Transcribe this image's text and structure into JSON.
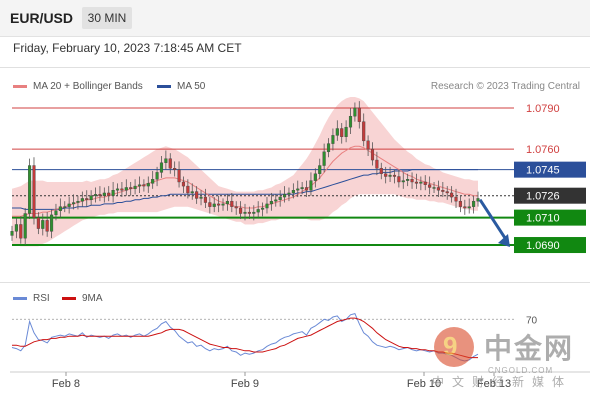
{
  "header": {
    "symbol": "EUR/USD",
    "timeframe": "30 MIN",
    "timestamp": "Friday, February 10, 2023 7:18:45 AM CET"
  },
  "legend": {
    "ma20_label": "MA 20 + Bollinger Bands",
    "ma50_label": "MA 50",
    "credit": "Research © 2023 Trading Central",
    "rsi_label": "RSI",
    "rsi_ma_label": "9MA"
  },
  "colors": {
    "ma20": "#e88080",
    "ma50": "#2b4f9a",
    "bollinger_fill": "#f6c6c6",
    "resistance": "#d04040",
    "support": "#118811",
    "current_price": "#333333",
    "candle_up": "#2f8f2f",
    "candle_down": "#c23b3b",
    "arrow": "#2a5aa0",
    "rsi": "#6a8ad6",
    "rsi_ma": "#cc1111"
  },
  "chart_data": [
    {
      "type": "candlestick",
      "x_axis": {
        "ticks": [
          "Feb 8",
          "Feb 9",
          "Feb 10",
          "Feb 13"
        ]
      },
      "y_axis": {
        "ylim": [
          1.0682,
          1.0798
        ]
      },
      "levels": [
        {
          "label": "1.0790",
          "value": 1.079,
          "kind": "resistance"
        },
        {
          "label": "1.0760",
          "value": 1.076,
          "kind": "resistance"
        },
        {
          "label": "1.0745",
          "value": 1.0745,
          "kind": "ma50"
        },
        {
          "label": "1.0726",
          "value": 1.0726,
          "kind": "current"
        },
        {
          "label": "1.0710",
          "value": 1.071,
          "kind": "support"
        },
        {
          "label": "1.0690",
          "value": 1.069,
          "kind": "support"
        }
      ],
      "forecast_arrow": {
        "from": 1.0726,
        "to": 1.069
      },
      "close": [
        1.07,
        1.0705,
        1.0695,
        1.0713,
        1.0748,
        1.071,
        1.0702,
        1.0708,
        1.07,
        1.0712,
        1.0715,
        1.0718,
        1.0718,
        1.072,
        1.0721,
        1.0722,
        1.0724,
        1.0723,
        1.0726,
        1.0727,
        1.0726,
        1.0728,
        1.0726,
        1.073,
        1.0731,
        1.073,
        1.0732,
        1.0731,
        1.0733,
        1.0734,
        1.0733,
        1.0735,
        1.0738,
        1.0743,
        1.075,
        1.0753,
        1.0746,
        1.0745,
        1.0736,
        1.0733,
        1.0728,
        1.0729,
        1.0724,
        1.0725,
        1.0721,
        1.0718,
        1.072,
        1.0719,
        1.072,
        1.0722,
        1.0718,
        1.0717,
        1.0713,
        1.0714,
        1.0713,
        1.0714,
        1.0716,
        1.0717,
        1.072,
        1.0722,
        1.0723,
        1.0725,
        1.0727,
        1.0728,
        1.073,
        1.0731,
        1.0732,
        1.073,
        1.0737,
        1.0742,
        1.0748,
        1.0758,
        1.0764,
        1.077,
        1.0775,
        1.0769,
        1.0776,
        1.0784,
        1.079,
        1.078,
        1.0766,
        1.076,
        1.0752,
        1.0746,
        1.0742,
        1.074,
        1.0741,
        1.074,
        1.0736,
        1.0737,
        1.0738,
        1.0736,
        1.0735,
        1.0736,
        1.0734,
        1.0732,
        1.0732,
        1.073,
        1.0729,
        1.0728,
        1.0725,
        1.0722,
        1.0718,
        1.0717,
        1.0718,
        1.0722,
        1.0724
      ],
      "ma20": [
        1.0711,
        1.0711,
        1.0711,
        1.0712,
        1.0713,
        1.0713,
        1.0713,
        1.0714,
        1.0714,
        1.0715,
        1.0716,
        1.0717,
        1.0718,
        1.0719,
        1.072,
        1.0721,
        1.0722,
        1.0723,
        1.0723,
        1.0724,
        1.0725,
        1.0725,
        1.0726,
        1.0727,
        1.0728,
        1.0729,
        1.073,
        1.0731,
        1.0732,
        1.0733,
        1.0734,
        1.0735,
        1.0736,
        1.0737,
        1.0738,
        1.0739,
        1.0739,
        1.0739,
        1.0738,
        1.0737,
        1.0736,
        1.0734,
        1.0732,
        1.073,
        1.0728,
        1.0726,
        1.0724,
        1.0722,
        1.0721,
        1.072,
        1.0719,
        1.0718,
        1.0718,
        1.0717,
        1.0717,
        1.0717,
        1.0718,
        1.0718,
        1.0719,
        1.072,
        1.0721,
        1.0722,
        1.0723,
        1.0724,
        1.0725,
        1.0727,
        1.0729,
        1.0731,
        1.0733,
        1.0736,
        1.0739,
        1.0743,
        1.0747,
        1.0751,
        1.0754,
        1.0757,
        1.0759,
        1.0761,
        1.0762,
        1.0762,
        1.0761,
        1.0759,
        1.0757,
        1.0755,
        1.0753,
        1.0751,
        1.0749,
        1.0747,
        1.0745,
        1.0743,
        1.0741,
        1.074,
        1.0738,
        1.0737,
        1.0736,
        1.0735,
        1.0734,
        1.0733,
        1.0732,
        1.0731,
        1.073,
        1.0729,
        1.0728,
        1.0727,
        1.0727,
        1.0726,
        1.0726
      ],
      "ma50": [
        1.0717,
        1.0717,
        1.0717,
        1.0716,
        1.0716,
        1.0716,
        1.0716,
        1.0716,
        1.0716,
        1.0716,
        1.0716,
        1.0716,
        1.0717,
        1.0717,
        1.0717,
        1.0718,
        1.0718,
        1.0718,
        1.0719,
        1.0719,
        1.0719,
        1.072,
        1.072,
        1.072,
        1.0721,
        1.0721,
        1.0722,
        1.0722,
        1.0723,
        1.0723,
        1.0724,
        1.0724,
        1.0725,
        1.0725,
        1.0726,
        1.0726,
        1.0727,
        1.0727,
        1.0727,
        1.0727,
        1.0727,
        1.0727,
        1.0727,
        1.0727,
        1.0727,
        1.0727,
        1.0727,
        1.0727,
        1.0727,
        1.0727,
        1.0727,
        1.0727,
        1.0727,
        1.0727,
        1.0727,
        1.0727,
        1.0727,
        1.0727,
        1.0727,
        1.0727,
        1.0727,
        1.0727,
        1.0727,
        1.0727,
        1.0727,
        1.0728,
        1.0728,
        1.0729,
        1.0729,
        1.073,
        1.0731,
        1.0732,
        1.0733,
        1.0734,
        1.0735,
        1.0736,
        1.0737,
        1.0738,
        1.0739,
        1.074,
        1.0741,
        1.0741,
        1.0742,
        1.0742,
        1.0743,
        1.0743,
        1.0743,
        1.0744,
        1.0744,
        1.0744,
        1.0744,
        1.0745,
        1.0745,
        1.0745,
        1.0745,
        1.0745,
        1.0745,
        1.0745,
        1.0745,
        1.0745,
        1.0745,
        1.0745,
        1.0745,
        1.0745,
        1.0745,
        1.0745,
        1.0745
      ],
      "bb_width": [
        0.002,
        0.0021,
        0.0022,
        0.0023,
        0.0024,
        0.0024,
        0.0024,
        0.0023,
        0.0022,
        0.0021,
        0.002,
        0.0019,
        0.0018,
        0.0017,
        0.0016,
        0.0015,
        0.0014,
        0.0014,
        0.0013,
        0.0013,
        0.0013,
        0.0013,
        0.0013,
        0.0014,
        0.0014,
        0.0015,
        0.0016,
        0.0017,
        0.0018,
        0.0019,
        0.002,
        0.0021,
        0.0022,
        0.0023,
        0.0023,
        0.0023,
        0.0022,
        0.0021,
        0.002,
        0.0019,
        0.0018,
        0.0017,
        0.0016,
        0.0015,
        0.0014,
        0.0013,
        0.0012,
        0.0011,
        0.0011,
        0.0011,
        0.0011,
        0.0011,
        0.0011,
        0.0012,
        0.0012,
        0.0012,
        0.0012,
        0.0012,
        0.0012,
        0.0012,
        0.0013,
        0.0013,
        0.0014,
        0.0015,
        0.0016,
        0.0018,
        0.002,
        0.0022,
        0.0025,
        0.0028,
        0.0031,
        0.0034,
        0.0036,
        0.0037,
        0.0038,
        0.0038,
        0.0038,
        0.0037,
        0.0036,
        0.0035,
        0.0034,
        0.0032,
        0.003,
        0.0028,
        0.0026,
        0.0024,
        0.0022,
        0.002,
        0.0019,
        0.0018,
        0.0017,
        0.0016,
        0.0015,
        0.0014,
        0.0013,
        0.0013,
        0.0012,
        0.0012,
        0.0011,
        0.0011,
        0.0011,
        0.0011,
        0.0011,
        0.0011,
        0.0011,
        0.0011,
        0.0011
      ]
    },
    {
      "type": "line",
      "x_axis": {
        "ticks": [
          "Feb 8",
          "Feb 9",
          "Feb 10",
          "Feb 13"
        ]
      },
      "y_axis": {
        "ticks": [
          70
        ],
        "ylim": [
          25,
          80
        ]
      },
      "series": [
        {
          "name": "RSI",
          "values": [
            45,
            44,
            42,
            47,
            68,
            58,
            52,
            51,
            49,
            54,
            55,
            56,
            55,
            57,
            56,
            55,
            58,
            54,
            56,
            55,
            54,
            55,
            53,
            56,
            57,
            55,
            56,
            54,
            56,
            57,
            55,
            57,
            60,
            62,
            66,
            68,
            63,
            60,
            55,
            52,
            49,
            50,
            46,
            47,
            44,
            42,
            44,
            43,
            44,
            46,
            42,
            41,
            38,
            40,
            39,
            40,
            42,
            43,
            46,
            48,
            49,
            52,
            54,
            55,
            57,
            58,
            59,
            56,
            62,
            64,
            67,
            70,
            69,
            72,
            73,
            68,
            70,
            74,
            75,
            66,
            58,
            55,
            50,
            47,
            46,
            45,
            46,
            45,
            43,
            44,
            45,
            43,
            42,
            43,
            42,
            41,
            42,
            40,
            40,
            39,
            38,
            36,
            34,
            33,
            34,
            37,
            39
          ]
        },
        {
          "name": "9MA",
          "values": [
            47,
            47,
            46,
            46,
            48,
            50,
            51,
            52,
            52,
            53,
            53,
            54,
            54,
            55,
            55,
            55,
            56,
            55,
            55,
            55,
            55,
            55,
            55,
            55,
            55,
            55,
            55,
            55,
            55,
            55,
            55,
            55,
            56,
            57,
            58,
            60,
            61,
            61,
            61,
            60,
            58,
            56,
            54,
            52,
            50,
            48,
            47,
            46,
            45,
            45,
            44,
            44,
            43,
            42,
            42,
            41,
            41,
            41,
            42,
            43,
            44,
            46,
            47,
            49,
            51,
            53,
            54,
            55,
            56,
            58,
            60,
            62,
            64,
            66,
            68,
            69,
            70,
            71,
            71,
            70,
            68,
            65,
            62,
            58,
            55,
            52,
            50,
            48,
            46,
            45,
            45,
            44,
            44,
            43,
            43,
            42,
            42,
            41,
            41,
            40,
            40,
            39,
            38,
            37,
            36,
            36,
            36
          ]
        }
      ]
    }
  ]
}
